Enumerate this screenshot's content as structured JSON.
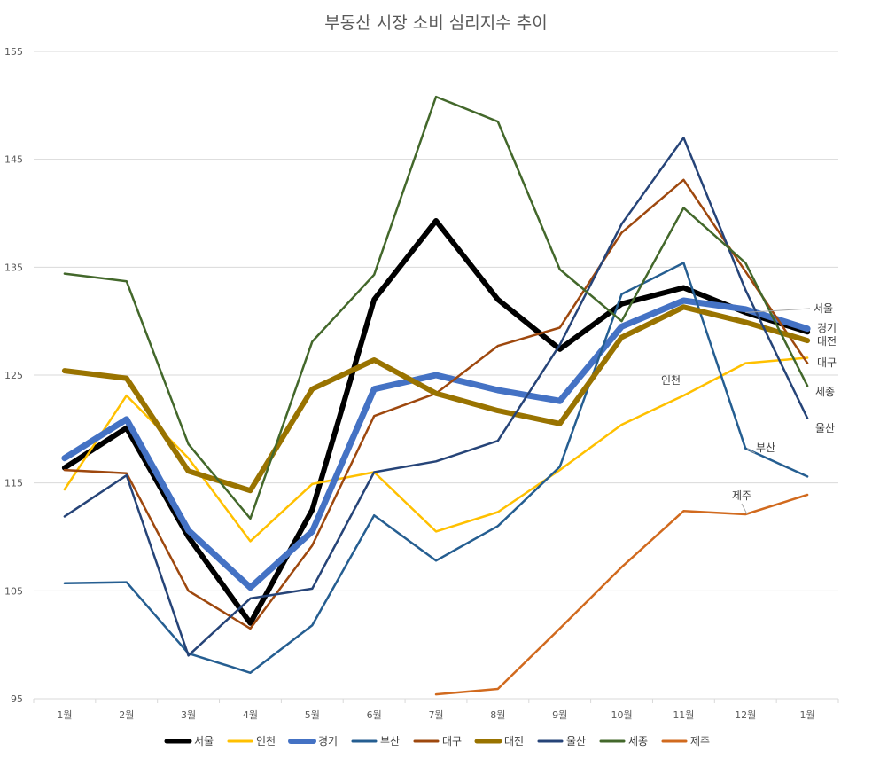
{
  "chart_data": {
    "type": "line",
    "title": "부동산 시장 소비 심리지수 추이",
    "categories": [
      "1월",
      "2월",
      "3월",
      "4월",
      "5월",
      "6월",
      "7월",
      "8월",
      "9월",
      "10월",
      "11월",
      "12월",
      "1월"
    ],
    "ylim": [
      95,
      155
    ],
    "yticks": [
      95,
      105,
      115,
      125,
      135,
      145,
      155
    ],
    "ytick_labels": [
      "95",
      "105",
      "115",
      "125",
      "135",
      "145",
      "155"
    ],
    "grid": "horizontal",
    "legend_position": "bottom",
    "series": [
      {
        "name": "서울",
        "color": "#000000",
        "width": 6,
        "values": [
          116.4,
          120.1,
          110.0,
          102.0,
          112.5,
          132.0,
          139.3,
          132.0,
          127.4,
          131.6,
          133.1,
          130.8,
          129.0
        ]
      },
      {
        "name": "인천",
        "color": "#ffc000",
        "width": 2.5,
        "values": [
          114.4,
          123.1,
          117.3,
          109.6,
          114.9,
          116.0,
          110.5,
          112.3,
          116.2,
          120.4,
          123.1,
          126.1,
          126.6
        ]
      },
      {
        "name": "경기",
        "color": "#4472c4",
        "width": 7,
        "values": [
          117.3,
          120.9,
          110.6,
          105.3,
          110.5,
          123.7,
          125.0,
          123.6,
          122.6,
          129.5,
          131.9,
          131.1,
          129.3
        ]
      },
      {
        "name": "부산",
        "color": "#255e91",
        "width": 2.5,
        "values": [
          105.7,
          105.8,
          99.2,
          97.4,
          101.8,
          112.0,
          107.8,
          111.0,
          116.5,
          132.5,
          135.4,
          118.2,
          115.6
        ]
      },
      {
        "name": "대구",
        "color": "#9e480e",
        "width": 2.5,
        "values": [
          116.2,
          115.9,
          105.0,
          101.5,
          109.2,
          121.2,
          123.3,
          127.7,
          129.4,
          138.2,
          143.1,
          134.6,
          126.1
        ]
      },
      {
        "name": "대전",
        "color": "#997300",
        "width": 6,
        "values": [
          125.4,
          124.7,
          116.1,
          114.3,
          123.7,
          126.4,
          123.3,
          121.7,
          120.5,
          128.5,
          131.3,
          129.9,
          128.2
        ]
      },
      {
        "name": "울산",
        "color": "#264478",
        "width": 2.5,
        "values": [
          111.9,
          115.7,
          99.0,
          104.3,
          105.2,
          116.0,
          117.0,
          118.9,
          127.8,
          139.0,
          147.0,
          132.9,
          121.0
        ]
      },
      {
        "name": "세종",
        "color": "#43682b",
        "width": 2.5,
        "values": [
          134.4,
          133.7,
          118.6,
          111.7,
          128.1,
          134.3,
          150.8,
          148.5,
          134.8,
          130.0,
          140.5,
          135.4,
          124.0
        ]
      },
      {
        "name": "제주",
        "color": "#d16a1e",
        "width": 2.5,
        "values": [
          null,
          null,
          null,
          null,
          null,
          null,
          95.4,
          95.9,
          101.5,
          107.2,
          112.4,
          112.1,
          113.9
        ]
      }
    ],
    "annotations": [
      {
        "text": "서울",
        "series": "서울",
        "point_index": 11
      },
      {
        "text": "경기",
        "series": "경기",
        "point_index": 12
      },
      {
        "text": "대전",
        "series": "대전",
        "point_index": 12
      },
      {
        "text": "대구",
        "series": "대구",
        "point_index": 12
      },
      {
        "text": "인천",
        "series": "인천",
        "point_index": 10
      },
      {
        "text": "세종",
        "series": "세종",
        "point_index": 12
      },
      {
        "text": "부산",
        "series": "부산",
        "point_index": 11
      },
      {
        "text": "울산",
        "series": "울산",
        "point_index": 12
      },
      {
        "text": "제주",
        "series": "제주",
        "point_index": 11
      }
    ]
  }
}
